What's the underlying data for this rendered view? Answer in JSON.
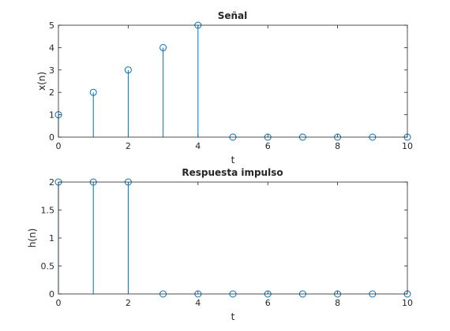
{
  "chart_data": [
    {
      "type": "stem",
      "title": "Señal",
      "xlabel": "t",
      "ylabel": "x(n)",
      "xlim": [
        0,
        10
      ],
      "ylim": [
        0,
        5
      ],
      "xticks": [
        "0",
        "2",
        "4",
        "6",
        "8",
        "10"
      ],
      "yticks": [
        "0",
        "1",
        "2",
        "3",
        "4",
        "5"
      ],
      "grid": false,
      "color": "#0072BD",
      "x": [
        0,
        1,
        2,
        3,
        4,
        5,
        6,
        7,
        8,
        9,
        10
      ],
      "y": [
        1,
        2,
        3,
        4,
        5,
        0,
        0,
        0,
        0,
        0,
        0
      ]
    },
    {
      "type": "stem",
      "title": "Respuesta impulso",
      "xlabel": "t",
      "ylabel": "h(n)",
      "xlim": [
        0,
        10
      ],
      "ylim": [
        0,
        2
      ],
      "xticks": [
        "0",
        "2",
        "4",
        "6",
        "8",
        "10"
      ],
      "yticks": [
        "0",
        "0.5",
        "1",
        "1.5",
        "2"
      ],
      "grid": false,
      "color": "#0072BD",
      "x": [
        0,
        1,
        2,
        3,
        4,
        5,
        6,
        7,
        8,
        9,
        10
      ],
      "y": [
        2,
        2,
        2,
        0,
        0,
        0,
        0,
        0,
        0,
        0,
        0
      ]
    }
  ]
}
